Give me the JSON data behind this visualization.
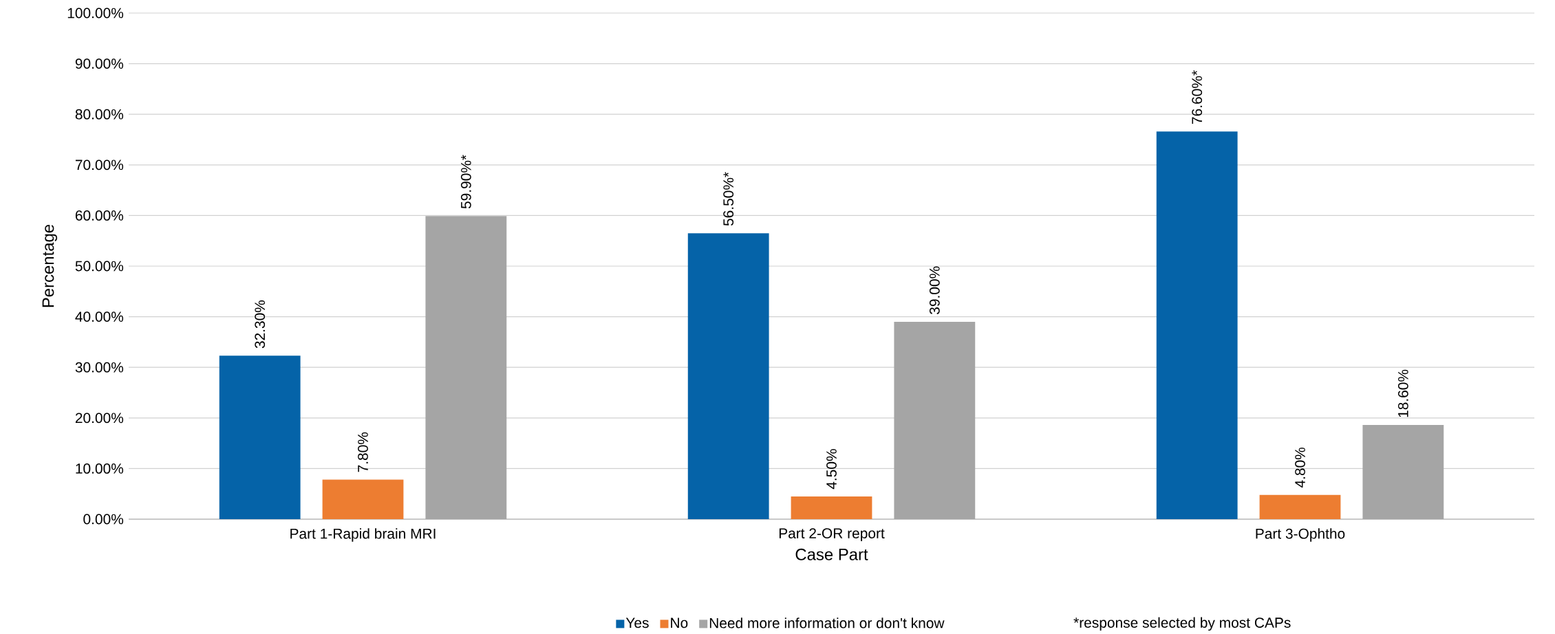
{
  "chart_data": {
    "type": "bar",
    "categories": [
      "Part 1-Rapid brain MRI",
      "Part 2-OR report",
      "Part 3-Ophtho"
    ],
    "series": [
      {
        "name": "Yes",
        "color": "#0563A8",
        "values": [
          32.3,
          56.5,
          76.6
        ],
        "value_labels": [
          "32.30%",
          "56.50%*",
          "76.60%*"
        ]
      },
      {
        "name": "No",
        "color": "#ED7D31",
        "values": [
          7.8,
          4.5,
          4.8
        ],
        "value_labels": [
          "7.80%",
          "4.50%",
          "4.80%"
        ]
      },
      {
        "name": "Need more information or don't know",
        "color": "#A5A5A5",
        "values": [
          59.9,
          39.0,
          18.6
        ],
        "value_labels": [
          "59.90%*",
          "39.00%",
          "18.60%"
        ]
      }
    ],
    "xlabel": "Case Part",
    "ylabel": "Percentage",
    "ylim": [
      0,
      100
    ],
    "yticks": [
      {
        "value": 0,
        "label": "0.00%"
      },
      {
        "value": 10,
        "label": "10.00%"
      },
      {
        "value": 20,
        "label": "20.00%"
      },
      {
        "value": 30,
        "label": "30.00%"
      },
      {
        "value": 40,
        "label": "40.00%"
      },
      {
        "value": 50,
        "label": "50.00%"
      },
      {
        "value": 60,
        "label": "60.00%"
      },
      {
        "value": 70,
        "label": "70.00%"
      },
      {
        "value": 80,
        "label": "80.00%"
      },
      {
        "value": 90,
        "label": "90.00%"
      },
      {
        "value": 100,
        "label": "100.00%"
      }
    ],
    "grid": "y",
    "legend": "bottom",
    "annotations": [
      "*response selected by most CAPs"
    ]
  }
}
